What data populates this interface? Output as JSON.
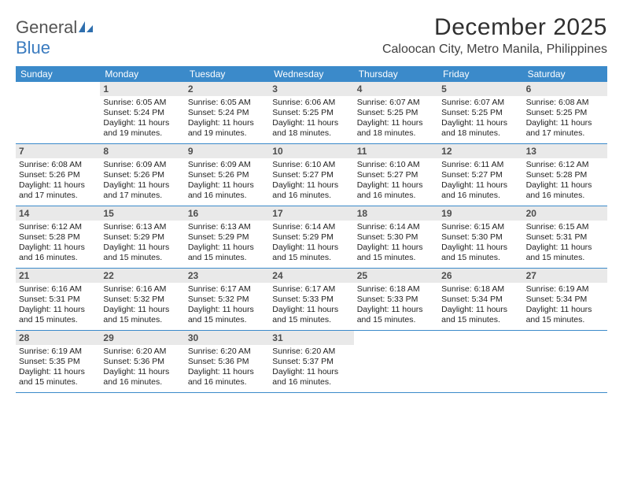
{
  "brand": {
    "part1": "General",
    "part2": "Blue"
  },
  "calendar": {
    "title": "December 2025",
    "location": "Caloocan City, Metro Manila, Philippines",
    "header_bg": "#3b8aca",
    "daynum_bg": "#e9e9e9",
    "dow": [
      "Sunday",
      "Monday",
      "Tuesday",
      "Wednesday",
      "Thursday",
      "Friday",
      "Saturday"
    ],
    "weeks": [
      [
        {
          "n": "",
          "sr": "",
          "ss": "",
          "dl": ""
        },
        {
          "n": "1",
          "sr": "Sunrise: 6:05 AM",
          "ss": "Sunset: 5:24 PM",
          "dl": "Daylight: 11 hours and 19 minutes."
        },
        {
          "n": "2",
          "sr": "Sunrise: 6:05 AM",
          "ss": "Sunset: 5:24 PM",
          "dl": "Daylight: 11 hours and 19 minutes."
        },
        {
          "n": "3",
          "sr": "Sunrise: 6:06 AM",
          "ss": "Sunset: 5:25 PM",
          "dl": "Daylight: 11 hours and 18 minutes."
        },
        {
          "n": "4",
          "sr": "Sunrise: 6:07 AM",
          "ss": "Sunset: 5:25 PM",
          "dl": "Daylight: 11 hours and 18 minutes."
        },
        {
          "n": "5",
          "sr": "Sunrise: 6:07 AM",
          "ss": "Sunset: 5:25 PM",
          "dl": "Daylight: 11 hours and 18 minutes."
        },
        {
          "n": "6",
          "sr": "Sunrise: 6:08 AM",
          "ss": "Sunset: 5:25 PM",
          "dl": "Daylight: 11 hours and 17 minutes."
        }
      ],
      [
        {
          "n": "7",
          "sr": "Sunrise: 6:08 AM",
          "ss": "Sunset: 5:26 PM",
          "dl": "Daylight: 11 hours and 17 minutes."
        },
        {
          "n": "8",
          "sr": "Sunrise: 6:09 AM",
          "ss": "Sunset: 5:26 PM",
          "dl": "Daylight: 11 hours and 17 minutes."
        },
        {
          "n": "9",
          "sr": "Sunrise: 6:09 AM",
          "ss": "Sunset: 5:26 PM",
          "dl": "Daylight: 11 hours and 16 minutes."
        },
        {
          "n": "10",
          "sr": "Sunrise: 6:10 AM",
          "ss": "Sunset: 5:27 PM",
          "dl": "Daylight: 11 hours and 16 minutes."
        },
        {
          "n": "11",
          "sr": "Sunrise: 6:10 AM",
          "ss": "Sunset: 5:27 PM",
          "dl": "Daylight: 11 hours and 16 minutes."
        },
        {
          "n": "12",
          "sr": "Sunrise: 6:11 AM",
          "ss": "Sunset: 5:27 PM",
          "dl": "Daylight: 11 hours and 16 minutes."
        },
        {
          "n": "13",
          "sr": "Sunrise: 6:12 AM",
          "ss": "Sunset: 5:28 PM",
          "dl": "Daylight: 11 hours and 16 minutes."
        }
      ],
      [
        {
          "n": "14",
          "sr": "Sunrise: 6:12 AM",
          "ss": "Sunset: 5:28 PM",
          "dl": "Daylight: 11 hours and 16 minutes."
        },
        {
          "n": "15",
          "sr": "Sunrise: 6:13 AM",
          "ss": "Sunset: 5:29 PM",
          "dl": "Daylight: 11 hours and 15 minutes."
        },
        {
          "n": "16",
          "sr": "Sunrise: 6:13 AM",
          "ss": "Sunset: 5:29 PM",
          "dl": "Daylight: 11 hours and 15 minutes."
        },
        {
          "n": "17",
          "sr": "Sunrise: 6:14 AM",
          "ss": "Sunset: 5:29 PM",
          "dl": "Daylight: 11 hours and 15 minutes."
        },
        {
          "n": "18",
          "sr": "Sunrise: 6:14 AM",
          "ss": "Sunset: 5:30 PM",
          "dl": "Daylight: 11 hours and 15 minutes."
        },
        {
          "n": "19",
          "sr": "Sunrise: 6:15 AM",
          "ss": "Sunset: 5:30 PM",
          "dl": "Daylight: 11 hours and 15 minutes."
        },
        {
          "n": "20",
          "sr": "Sunrise: 6:15 AM",
          "ss": "Sunset: 5:31 PM",
          "dl": "Daylight: 11 hours and 15 minutes."
        }
      ],
      [
        {
          "n": "21",
          "sr": "Sunrise: 6:16 AM",
          "ss": "Sunset: 5:31 PM",
          "dl": "Daylight: 11 hours and 15 minutes."
        },
        {
          "n": "22",
          "sr": "Sunrise: 6:16 AM",
          "ss": "Sunset: 5:32 PM",
          "dl": "Daylight: 11 hours and 15 minutes."
        },
        {
          "n": "23",
          "sr": "Sunrise: 6:17 AM",
          "ss": "Sunset: 5:32 PM",
          "dl": "Daylight: 11 hours and 15 minutes."
        },
        {
          "n": "24",
          "sr": "Sunrise: 6:17 AM",
          "ss": "Sunset: 5:33 PM",
          "dl": "Daylight: 11 hours and 15 minutes."
        },
        {
          "n": "25",
          "sr": "Sunrise: 6:18 AM",
          "ss": "Sunset: 5:33 PM",
          "dl": "Daylight: 11 hours and 15 minutes."
        },
        {
          "n": "26",
          "sr": "Sunrise: 6:18 AM",
          "ss": "Sunset: 5:34 PM",
          "dl": "Daylight: 11 hours and 15 minutes."
        },
        {
          "n": "27",
          "sr": "Sunrise: 6:19 AM",
          "ss": "Sunset: 5:34 PM",
          "dl": "Daylight: 11 hours and 15 minutes."
        }
      ],
      [
        {
          "n": "28",
          "sr": "Sunrise: 6:19 AM",
          "ss": "Sunset: 5:35 PM",
          "dl": "Daylight: 11 hours and 15 minutes."
        },
        {
          "n": "29",
          "sr": "Sunrise: 6:20 AM",
          "ss": "Sunset: 5:36 PM",
          "dl": "Daylight: 11 hours and 16 minutes."
        },
        {
          "n": "30",
          "sr": "Sunrise: 6:20 AM",
          "ss": "Sunset: 5:36 PM",
          "dl": "Daylight: 11 hours and 16 minutes."
        },
        {
          "n": "31",
          "sr": "Sunrise: 6:20 AM",
          "ss": "Sunset: 5:37 PM",
          "dl": "Daylight: 11 hours and 16 minutes."
        },
        {
          "n": "",
          "sr": "",
          "ss": "",
          "dl": ""
        },
        {
          "n": "",
          "sr": "",
          "ss": "",
          "dl": ""
        },
        {
          "n": "",
          "sr": "",
          "ss": "",
          "dl": ""
        }
      ]
    ]
  }
}
